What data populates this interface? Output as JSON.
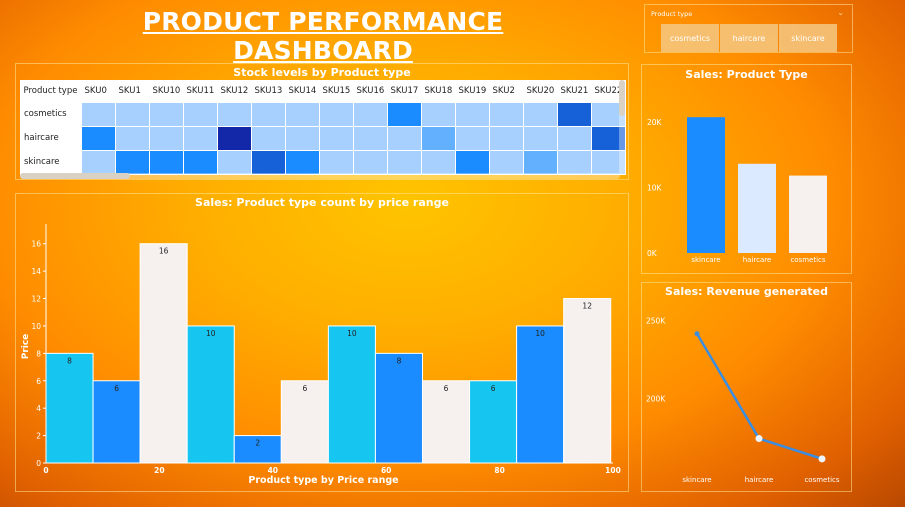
{
  "dashboard_title": "PRODUCT PERFORMANCE DASHBOARD",
  "slicer": {
    "label": "Product type",
    "options": [
      "cosmetics",
      "haircare",
      "skincare"
    ]
  },
  "colors": {
    "dark_blue": "#1328a8",
    "mid_blue": "#1660d8",
    "blue": "#1a8cff",
    "sky_blue": "#63b0ff",
    "light_blue": "#a8d0ff",
    "cyan": "#17c6f0",
    "off_white": "#f6f1ee",
    "pale_blue": "#dbeaff",
    "line_blue": "#3a8de0"
  },
  "stock_table": {
    "title": "Stock levels by Product type",
    "header": "Product type",
    "columns": [
      "SKU0",
      "SKU1",
      "SKU10",
      "SKU11",
      "SKU12",
      "SKU13",
      "SKU14",
      "SKU15",
      "SKU16",
      "SKU17",
      "SKU18",
      "SKU19",
      "SKU2",
      "SKU20",
      "SKU21",
      "SKU22"
    ],
    "rows": [
      {
        "label": "cosmetics",
        "levels": [
          1,
          1,
          1,
          1,
          1,
          1,
          1,
          1,
          1,
          3,
          1,
          1,
          1,
          1,
          4,
          1
        ]
      },
      {
        "label": "haircare",
        "levels": [
          3,
          1,
          1,
          1,
          5,
          1,
          1,
          1,
          1,
          1,
          2,
          1,
          1,
          1,
          1,
          4
        ]
      },
      {
        "label": "skincare",
        "levels": [
          1,
          3,
          3,
          3,
          1,
          4,
          3,
          1,
          1,
          1,
          1,
          3,
          1,
          2,
          1,
          1
        ]
      }
    ]
  },
  "chart_data": [
    {
      "type": "bar",
      "title": "Sales: Product type count by price range",
      "xlabel": "Product type by Price range",
      "ylabel": "Price",
      "xlim": [
        0,
        100
      ],
      "ylim": [
        0,
        17
      ],
      "x_ticks": [
        0,
        20,
        40,
        60,
        80,
        100
      ],
      "y_ticks": [
        0,
        2,
        4,
        6,
        8,
        10,
        12,
        14,
        16
      ],
      "bin_width": 8.3,
      "bins": [
        {
          "start": 0,
          "value": 8,
          "color": "cyan"
        },
        {
          "start": 8.3,
          "value": 6,
          "color": "blue"
        },
        {
          "start": 16.6,
          "value": 16,
          "color": "off_white"
        },
        {
          "start": 24.9,
          "value": 10,
          "color": "cyan"
        },
        {
          "start": 33.2,
          "value": 2,
          "color": "blue"
        },
        {
          "start": 41.5,
          "value": 6,
          "color": "off_white"
        },
        {
          "start": 49.8,
          "value": 10,
          "color": "cyan"
        },
        {
          "start": 58.1,
          "value": 8,
          "color": "blue"
        },
        {
          "start": 66.4,
          "value": 6,
          "color": "off_white"
        },
        {
          "start": 74.7,
          "value": 6,
          "color": "cyan"
        },
        {
          "start": 83.0,
          "value": 10,
          "color": "blue"
        },
        {
          "start": 91.3,
          "value": 12,
          "color": "off_white"
        }
      ]
    },
    {
      "type": "bar",
      "title": "Sales: Product Type",
      "categories": [
        "skincare",
        "haircare",
        "cosmetics"
      ],
      "values": [
        20700,
        13600,
        11800
      ],
      "bar_colors": [
        "blue",
        "pale_blue",
        "off_white"
      ],
      "y_ticks": [
        0,
        10000,
        20000
      ],
      "y_tick_labels": [
        "0K",
        "10K",
        "20K"
      ],
      "ylim": [
        0,
        25000
      ]
    },
    {
      "type": "line",
      "title": "Sales: Revenue generated",
      "categories": [
        "skincare",
        "haircare",
        "cosmetics"
      ],
      "values": [
        241600,
        174500,
        161500
      ],
      "y_ticks": [
        200000,
        250000
      ],
      "y_tick_labels": [
        "200K",
        "250K"
      ],
      "ylim": [
        155000,
        260000
      ]
    }
  ]
}
